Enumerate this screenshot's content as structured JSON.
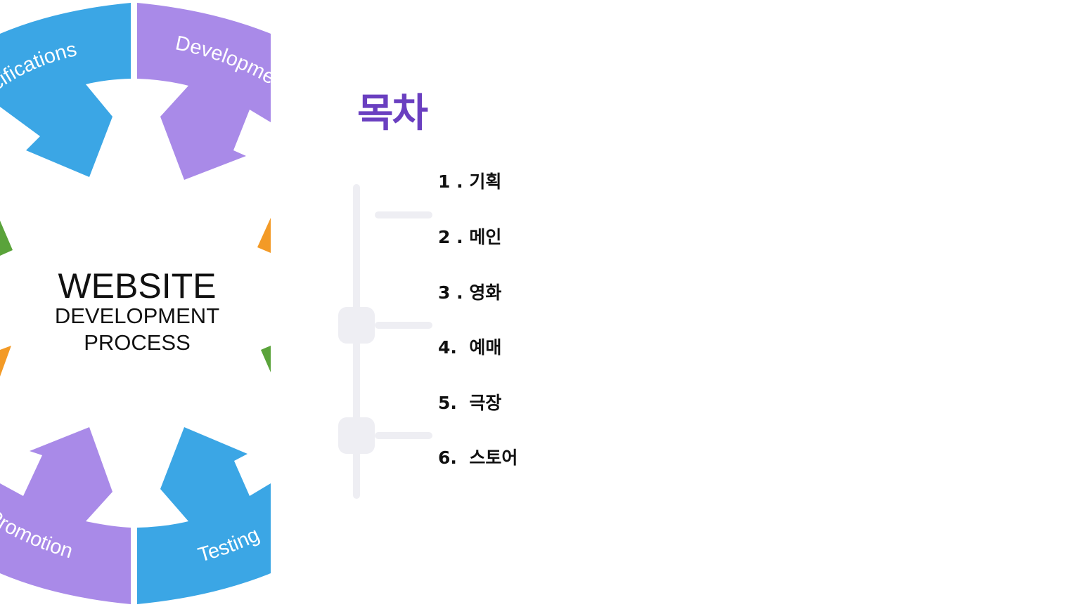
{
  "diagram": {
    "segments": [
      {
        "label": "Specifications",
        "visible_text": "pecifications",
        "color": "#3ba6e5"
      },
      {
        "label": "Development",
        "visible_text": "Developme",
        "color": "#a98ae8"
      },
      {
        "label": "Testing",
        "visible_text": "Testing",
        "color": "#3ba6e5"
      },
      {
        "label": "Promotion",
        "visible_text": "Promotion",
        "color": "#a98ae8"
      }
    ],
    "side_arrow_colors": {
      "green": "#5aa33a",
      "orange": "#f39a26"
    },
    "center": {
      "line1": "WEBSITE",
      "line2": "DEVELOPMENT",
      "line3": "PROCESS"
    }
  },
  "toc": {
    "title": "목차",
    "title_color": "#6a3fc0",
    "items": [
      {
        "number": "1 .",
        "label": "기획"
      },
      {
        "number": "2 .",
        "label": "메인"
      },
      {
        "number": "3 .",
        "label": "영화"
      },
      {
        "number": "4.",
        "label": "예매"
      },
      {
        "number": "5.",
        "label": "극장"
      },
      {
        "number": "6.",
        "label": "스토어"
      }
    ]
  }
}
